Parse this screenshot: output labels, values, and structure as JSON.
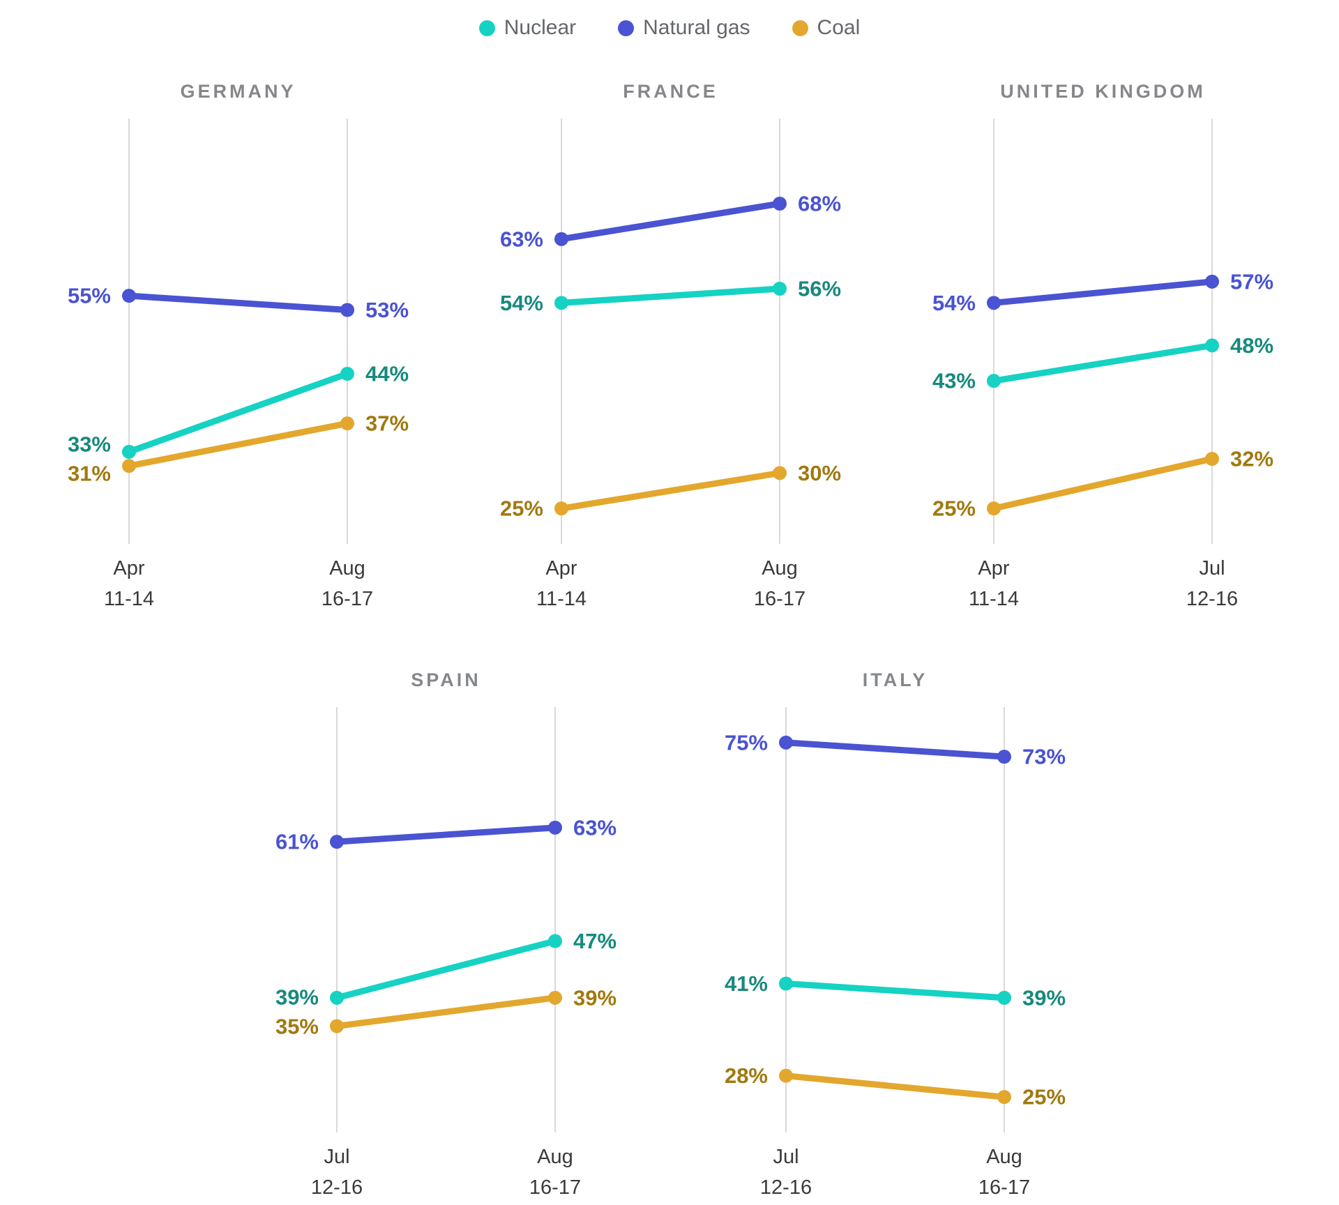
{
  "page": {
    "background": "#ffffff"
  },
  "palette": {
    "Nuclear": {
      "line": "#16d2c3",
      "label": "#17897d"
    },
    "Natural gas": {
      "line": "#4a53d1",
      "label": "#4a53d1"
    },
    "Coal": {
      "line": "#e3a72d",
      "label": "#a0790f"
    }
  },
  "legend": {
    "position": "top-center",
    "items": [
      {
        "label": "Nuclear",
        "color": "#16d2c3"
      },
      {
        "label": "Natural gas",
        "color": "#4a53d1"
      },
      {
        "label": "Coal",
        "color": "#e3a72d"
      }
    ]
  },
  "chart_data": [
    {
      "type": "line",
      "title": "GERMANY",
      "row": 0,
      "unit": "%",
      "ylim": [
        20,
        80
      ],
      "grid": "two-vertical-gridlines",
      "x": [
        {
          "month": "Apr",
          "days": "11-14"
        },
        {
          "month": "Aug",
          "days": "16-17"
        }
      ],
      "series": [
        {
          "name": "Nuclear",
          "values": [
            33,
            44
          ]
        },
        {
          "name": "Natural gas",
          "values": [
            55,
            53
          ]
        },
        {
          "name": "Coal",
          "values": [
            31,
            37
          ]
        }
      ]
    },
    {
      "type": "line",
      "title": "FRANCE",
      "row": 0,
      "unit": "%",
      "ylim": [
        20,
        80
      ],
      "grid": "two-vertical-gridlines",
      "x": [
        {
          "month": "Apr",
          "days": "11-14"
        },
        {
          "month": "Aug",
          "days": "16-17"
        }
      ],
      "series": [
        {
          "name": "Nuclear",
          "values": [
            54,
            56
          ]
        },
        {
          "name": "Natural gas",
          "values": [
            63,
            68
          ]
        },
        {
          "name": "Coal",
          "values": [
            25,
            30
          ]
        }
      ]
    },
    {
      "type": "line",
      "title": "UNITED KINGDOM",
      "row": 0,
      "unit": "%",
      "ylim": [
        20,
        80
      ],
      "grid": "two-vertical-gridlines",
      "x": [
        {
          "month": "Apr",
          "days": "11-14"
        },
        {
          "month": "Jul",
          "days": "12-16"
        }
      ],
      "series": [
        {
          "name": "Nuclear",
          "values": [
            43,
            48
          ]
        },
        {
          "name": "Natural gas",
          "values": [
            54,
            57
          ]
        },
        {
          "name": "Coal",
          "values": [
            25,
            32
          ]
        }
      ]
    },
    {
      "type": "line",
      "title": "SPAIN",
      "row": 1,
      "unit": "%",
      "ylim": [
        20,
        80
      ],
      "grid": "two-vertical-gridlines",
      "x": [
        {
          "month": "Jul",
          "days": "12-16"
        },
        {
          "month": "Aug",
          "days": "16-17"
        }
      ],
      "series": [
        {
          "name": "Nuclear",
          "values": [
            39,
            47
          ]
        },
        {
          "name": "Natural gas",
          "values": [
            61,
            63
          ]
        },
        {
          "name": "Coal",
          "values": [
            35,
            39
          ]
        }
      ]
    },
    {
      "type": "line",
      "title": "ITALY",
      "row": 1,
      "unit": "%",
      "ylim": [
        20,
        80
      ],
      "grid": "two-vertical-gridlines",
      "x": [
        {
          "month": "Jul",
          "days": "12-16"
        },
        {
          "month": "Aug",
          "days": "16-17"
        }
      ],
      "series": [
        {
          "name": "Nuclear",
          "values": [
            41,
            39
          ]
        },
        {
          "name": "Natural gas",
          "values": [
            75,
            73
          ]
        },
        {
          "name": "Coal",
          "values": [
            28,
            25
          ]
        }
      ]
    }
  ],
  "style": {
    "title_color": "#85878a",
    "tick_color": "#3a3a3a",
    "gridline_color": "#d9d9d9"
  }
}
